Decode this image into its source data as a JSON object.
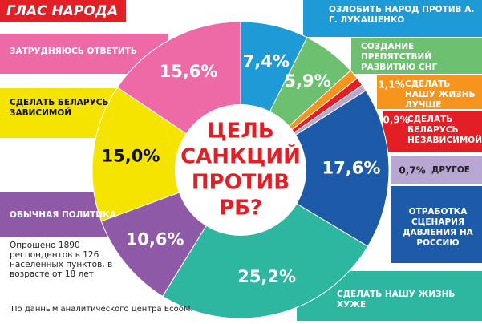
{
  "chart_data": {
    "type": "pie",
    "title": "ГЛАС НАРОДА",
    "center_text": [
      "ЦЕЛЬ",
      "САНКЦИЙ",
      "ПРОТИВ",
      "РБ?"
    ],
    "categories": [
      "ОЗЛОБИТЬ НАРОД ПРОТИВ А. Г. ЛУКАШЕНКО",
      "СОЗДАНИЕ ПРЕПЯТСТВИЙ РАЗВИТИЮ СНГ",
      "СДЕЛАТЬ НАШУ ЖИЗНЬ ЛУЧШЕ",
      "СДЕЛАТЬ БЕЛАРУСЬ НЕЗАВИСИМОЙ",
      "ДРУГОЕ",
      "ОТРАБОТКА СЦЕНАРИЯ ДАВЛЕНИЯ НА РОССИЮ",
      "СДЕЛАТЬ НАШУ ЖИЗНЬ ХУЖЕ",
      "ОБЫЧНАЯ ПОЛИТИКА",
      "СДЕЛАТЬ БЕЛАРУСЬ ЗАВИСИМОЙ",
      "ЗАТРУДНЯЮСЬ ОТВЕТИТЬ"
    ],
    "values": [
      7.4,
      5.9,
      1.1,
      0.9,
      0.7,
      17.6,
      25.2,
      10.6,
      15.0,
      15.6
    ],
    "value_labels": [
      "7,4%",
      "5,9%",
      "1,1%",
      "0,9%",
      "0,7%",
      "17,6%",
      "25,2%",
      "10,6%",
      "15,0%",
      "15,6%"
    ],
    "colors": [
      "#1e9ad6",
      "#6cc070",
      "#f7941d",
      "#e31e24",
      "#b9a7d3",
      "#1d5aa8",
      "#2db6a0",
      "#8e5aa8",
      "#f5e400",
      "#ee6aa7"
    ],
    "note": "Опрошено 1890 респондентов в 126 населенных пунктов, в возрасте от 18 лет.",
    "source": "По данным аналитического центра EcooM."
  }
}
